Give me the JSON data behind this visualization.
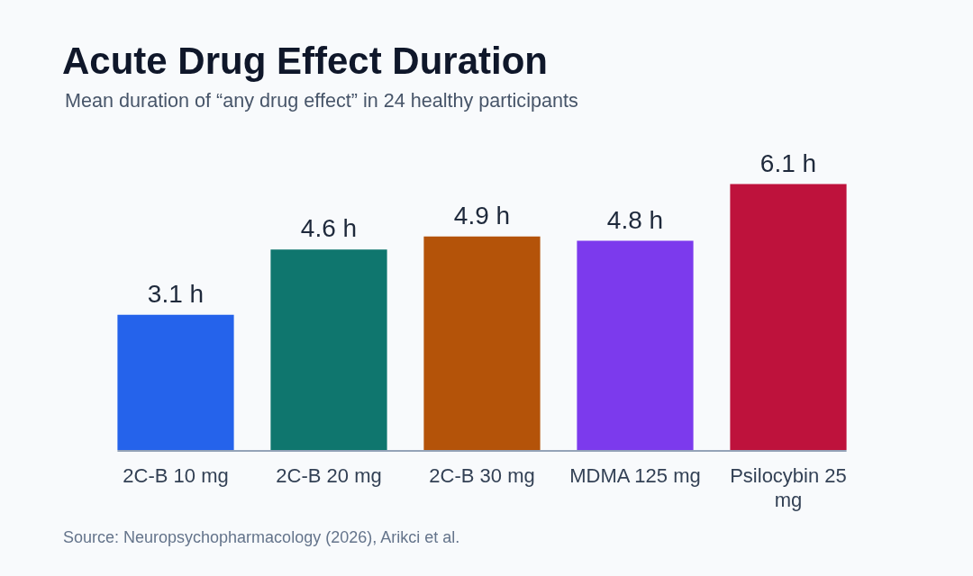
{
  "chart_data": {
    "type": "bar",
    "title": "Acute Drug Effect Duration",
    "subtitle": "Mean duration of “any drug effect” in 24 healthy participants",
    "categories": [
      "2C-B 10 mg",
      "2C-B 20 mg",
      "2C-B 30 mg",
      "MDMA 125 mg",
      "Psilocybin 25 mg"
    ],
    "values": [
      3.1,
      4.6,
      4.9,
      4.8,
      6.1
    ],
    "colors": [
      "#2563eb",
      "#0f766e",
      "#b45309",
      "#7c3aed",
      "#be123c"
    ],
    "value_labels": [
      "3.1 h",
      "4.6 h",
      "4.9 h",
      "4.8 h",
      "6.1 h"
    ],
    "tick_labels": "x",
    "annotations": [
      "Source: Neuropsychopharmacology (2026), Arikci et al."
    ]
  }
}
